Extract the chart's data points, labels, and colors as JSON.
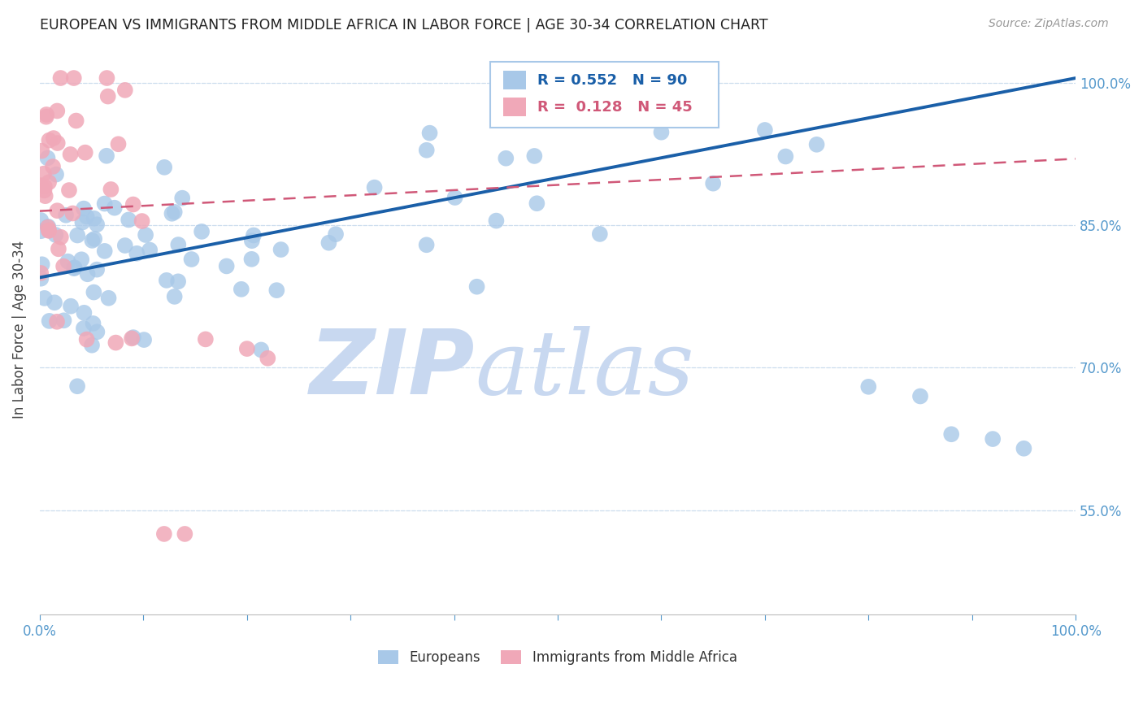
{
  "title": "EUROPEAN VS IMMIGRANTS FROM MIDDLE AFRICA IN LABOR FORCE | AGE 30-34 CORRELATION CHART",
  "source": "Source: ZipAtlas.com",
  "ylabel": "In Labor Force | Age 30-34",
  "ytick_labels": [
    "55.0%",
    "70.0%",
    "85.0%",
    "100.0%"
  ],
  "ytick_values": [
    0.55,
    0.7,
    0.85,
    1.0
  ],
  "xlim": [
    0.0,
    1.0
  ],
  "ylim": [
    0.44,
    1.04
  ],
  "blue_R": 0.552,
  "blue_N": 90,
  "pink_R": 0.128,
  "pink_N": 45,
  "blue_color": "#A8C8E8",
  "pink_color": "#F0A8B8",
  "blue_line_color": "#1A5FA8",
  "pink_line_color": "#D05878",
  "grid_color": "#CCDDEE",
  "background_color": "#FFFFFF",
  "watermark_zip": "ZIP",
  "watermark_atlas": "atlas",
  "watermark_color": "#C8D8F0",
  "title_color": "#222222",
  "axis_label_color": "#5599CC",
  "source_color": "#999999",
  "legend_label_blue": "Europeans",
  "legend_label_pink": "Immigrants from Middle Africa"
}
